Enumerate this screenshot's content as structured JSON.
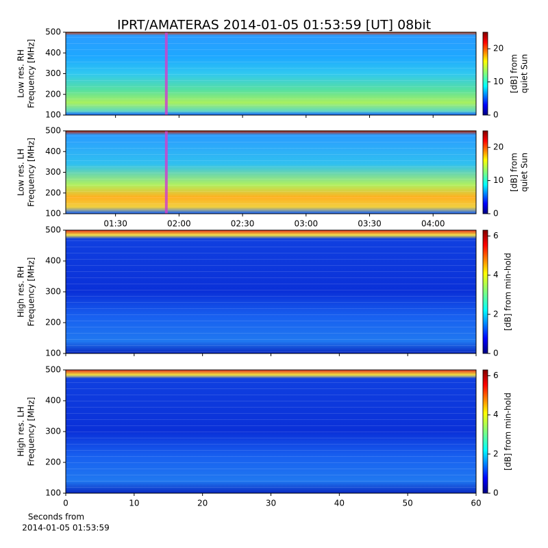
{
  "figure": {
    "title": "IPRT/AMATERAS 2014-01-05 01:53:59 [UT]   08bit",
    "xlabel_lines": [
      "Seconds from",
      "2014-01-05 01:53:59"
    ]
  },
  "chart_data": [
    {
      "type": "heatmap",
      "ylabel_lines": [
        "Low res. RH",
        "Frequency [MHz]"
      ],
      "ylim": [
        100,
        500
      ],
      "yticks": [
        100,
        200,
        300,
        400,
        500
      ],
      "xlim": [
        66.5,
        260.3
      ],
      "xticks": [
        90,
        120,
        150,
        180,
        210,
        240
      ],
      "show_xtick_labels": false,
      "marker": {
        "value": 114,
        "color": "#cc44cc"
      },
      "colorbar": {
        "label_lines": [
          "[dB] from",
          "quiet Sun"
        ],
        "lim": [
          0,
          25
        ],
        "ticks": [
          0,
          10,
          20
        ]
      }
    },
    {
      "type": "heatmap",
      "ylabel_lines": [
        "Low res. LH",
        "Frequency [MHz]"
      ],
      "ylim": [
        100,
        500
      ],
      "yticks": [
        100,
        200,
        300,
        400,
        500
      ],
      "xlim": [
        66.5,
        260.3
      ],
      "xticks": [
        {
          "value": 90,
          "label": "01:30"
        },
        {
          "value": 120,
          "label": "02:00"
        },
        {
          "value": 150,
          "label": "02:30"
        },
        {
          "value": 180,
          "label": "03:00"
        },
        {
          "value": 210,
          "label": "03:30"
        },
        {
          "value": 240,
          "label": "04:00"
        }
      ],
      "show_xtick_labels": true,
      "marker": {
        "value": 114,
        "color": "#cc44cc"
      },
      "colorbar": {
        "label_lines": [
          "[dB] from",
          "quiet Sun"
        ],
        "lim": [
          0,
          25
        ],
        "ticks": [
          0,
          10,
          20
        ]
      }
    },
    {
      "type": "heatmap",
      "ylabel_lines": [
        "High res. RH",
        "Frequency [MHz]"
      ],
      "ylim": [
        100,
        500
      ],
      "yticks": [
        100,
        200,
        300,
        400,
        500
      ],
      "xlim": [
        0,
        60
      ],
      "xticks": [
        0,
        10,
        20,
        30,
        40,
        50,
        60
      ],
      "show_xtick_labels": false,
      "colorbar": {
        "label_lines": [
          "[dB] from min-hold"
        ],
        "lim": [
          0,
          6.3
        ],
        "ticks": [
          0,
          2,
          4,
          6
        ]
      }
    },
    {
      "type": "heatmap",
      "ylabel_lines": [
        "High res. LH",
        "Frequency [MHz]"
      ],
      "ylim": [
        100,
        500
      ],
      "yticks": [
        100,
        200,
        300,
        400,
        500
      ],
      "xlim": [
        0,
        60
      ],
      "xticks": [
        0,
        10,
        20,
        30,
        40,
        50,
        60
      ],
      "show_xtick_labels": true,
      "colorbar": {
        "label_lines": [
          "[dB] from min-hold"
        ],
        "lim": [
          0,
          6.3
        ],
        "ticks": [
          0,
          2,
          4,
          6
        ]
      }
    }
  ]
}
